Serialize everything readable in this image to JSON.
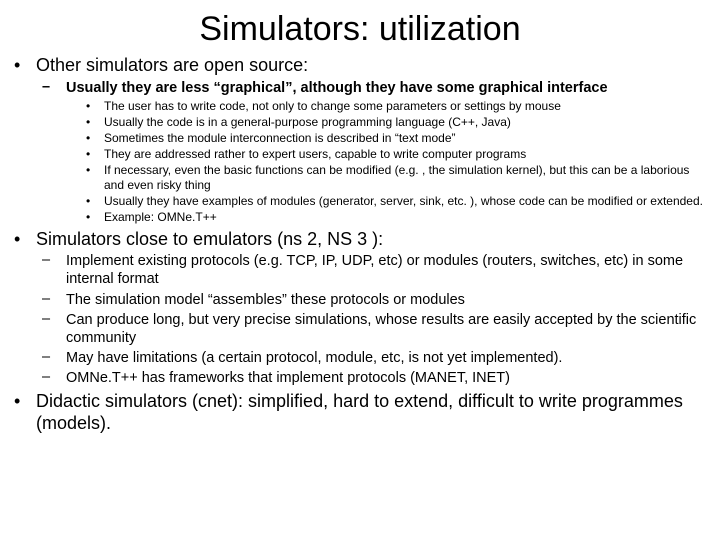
{
  "title": "Simulators: utilization",
  "sections": [
    {
      "text": "Other simulators are open source:",
      "sub": [
        {
          "text": "Usually they are less “graphical”, although they have some graphical interface",
          "bold": true,
          "sub": [
            "The user has to write code, not only to change some parameters or settings by mouse",
            "Usually the code is in a general-purpose programming language (C++, Java)",
            "Sometimes the module interconnection is described in “text mode”",
            "They are addressed rather to expert users, capable to write computer programs",
            "If necessary, even the basic functions can be modified (e.g. , the simulation kernel), but this can be a laborious and even risky thing",
            "Usually they have examples of modules (generator, server, sink, etc. ), whose code can be modified or extended.",
            "Example: OMNe.T++"
          ]
        }
      ]
    },
    {
      "text": "Simulators close to emulators (ns 2, NS 3 ):",
      "sub": [
        {
          "text": "Implement existing protocols (e.g. TCP, IP, UDP, etc) or modules (routers, switches, etc) in some internal format",
          "bold": false
        },
        {
          "text": "The simulation model “assembles” these protocols or modules",
          "bold": false
        },
        {
          "text": "Can produce long, but very precise simulations, whose results are easily accepted by the scientific community",
          "bold": false
        },
        {
          "text": "May have limitations (a certain protocol, module, etc, is not yet implemented).",
          "bold": false
        },
        {
          "text": "OMNe.T++ has frameworks that implement protocols (MANET, INET)",
          "bold": false
        }
      ]
    },
    {
      "text": "Didactic simulators (cnet): simplified, hard to extend, difficult to write programmes (models).",
      "sub": []
    }
  ]
}
